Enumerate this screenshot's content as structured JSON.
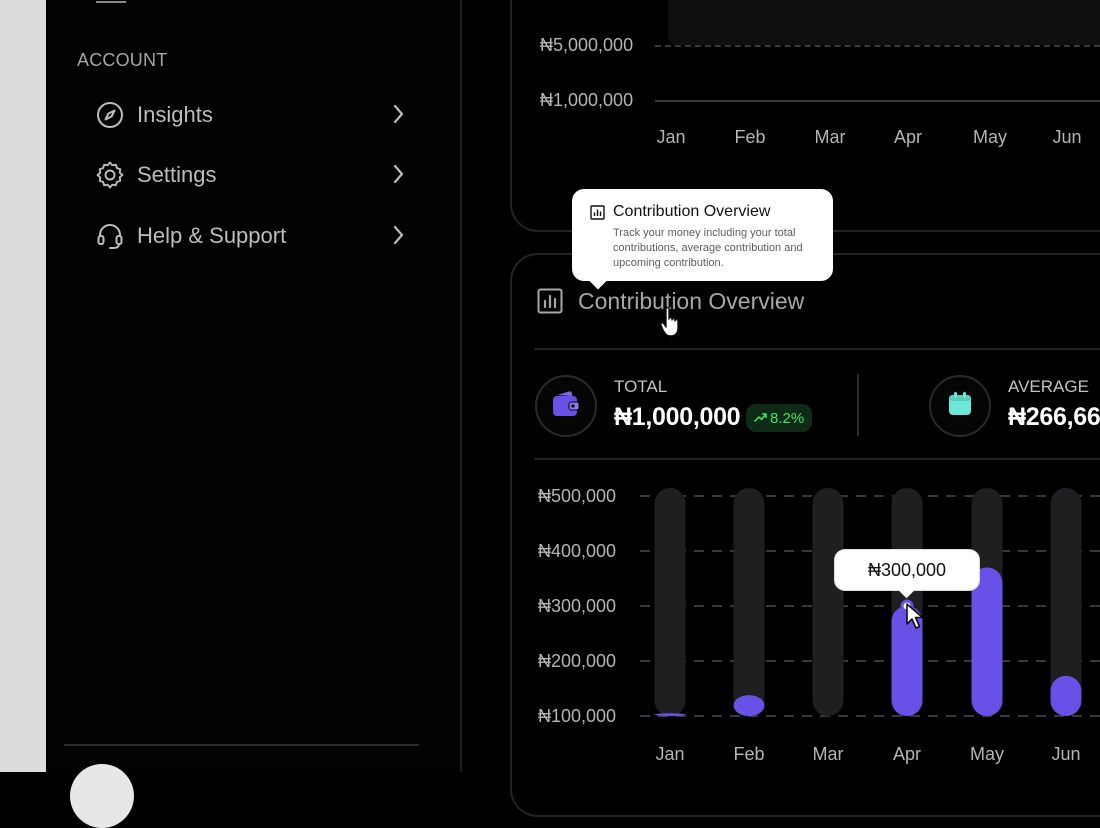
{
  "sidebar": {
    "section_title": "ACCOUNT",
    "items": [
      {
        "label": "Insights",
        "icon": "compass-icon"
      },
      {
        "label": "Settings",
        "icon": "gear-icon"
      },
      {
        "label": "Help & Support",
        "icon": "headset-icon"
      }
    ]
  },
  "top_chart": {
    "y_labels": [
      "₦5,000,000",
      "₦1,000,000"
    ],
    "months": [
      "Jan",
      "Feb",
      "Mar",
      "Apr",
      "May",
      "Jun"
    ]
  },
  "overview": {
    "title": "Contribution Overview",
    "tooltip": {
      "title": "Contribution Overview",
      "description": "Track your money including your total contributions, average contribution and upcoming contribution."
    },
    "total": {
      "label": "TOTAL",
      "value": "₦1,000,000",
      "badge": "8.2%",
      "badge_icon": "trend-up-icon"
    },
    "average": {
      "label": "AVERAGE",
      "value": "₦266,66"
    },
    "value_tooltip": "₦300,000"
  },
  "colors": {
    "accent": "#6851e6",
    "track": "#1f1f22",
    "badge_green": "#3ee46c",
    "calendar_teal": "#6ee7d6"
  },
  "chart_data": {
    "type": "bar",
    "categories": [
      "Jan",
      "Feb",
      "Mar",
      "Apr",
      "May",
      "Jun"
    ],
    "values": [
      105000,
      138000,
      83000,
      300000,
      370000,
      173000
    ],
    "ylim": [
      0,
      500000
    ],
    "yticks": [
      "₦500,000",
      "₦400,000",
      "₦300,000",
      "₦200,000",
      "₦100,000"
    ],
    "grid": true
  }
}
